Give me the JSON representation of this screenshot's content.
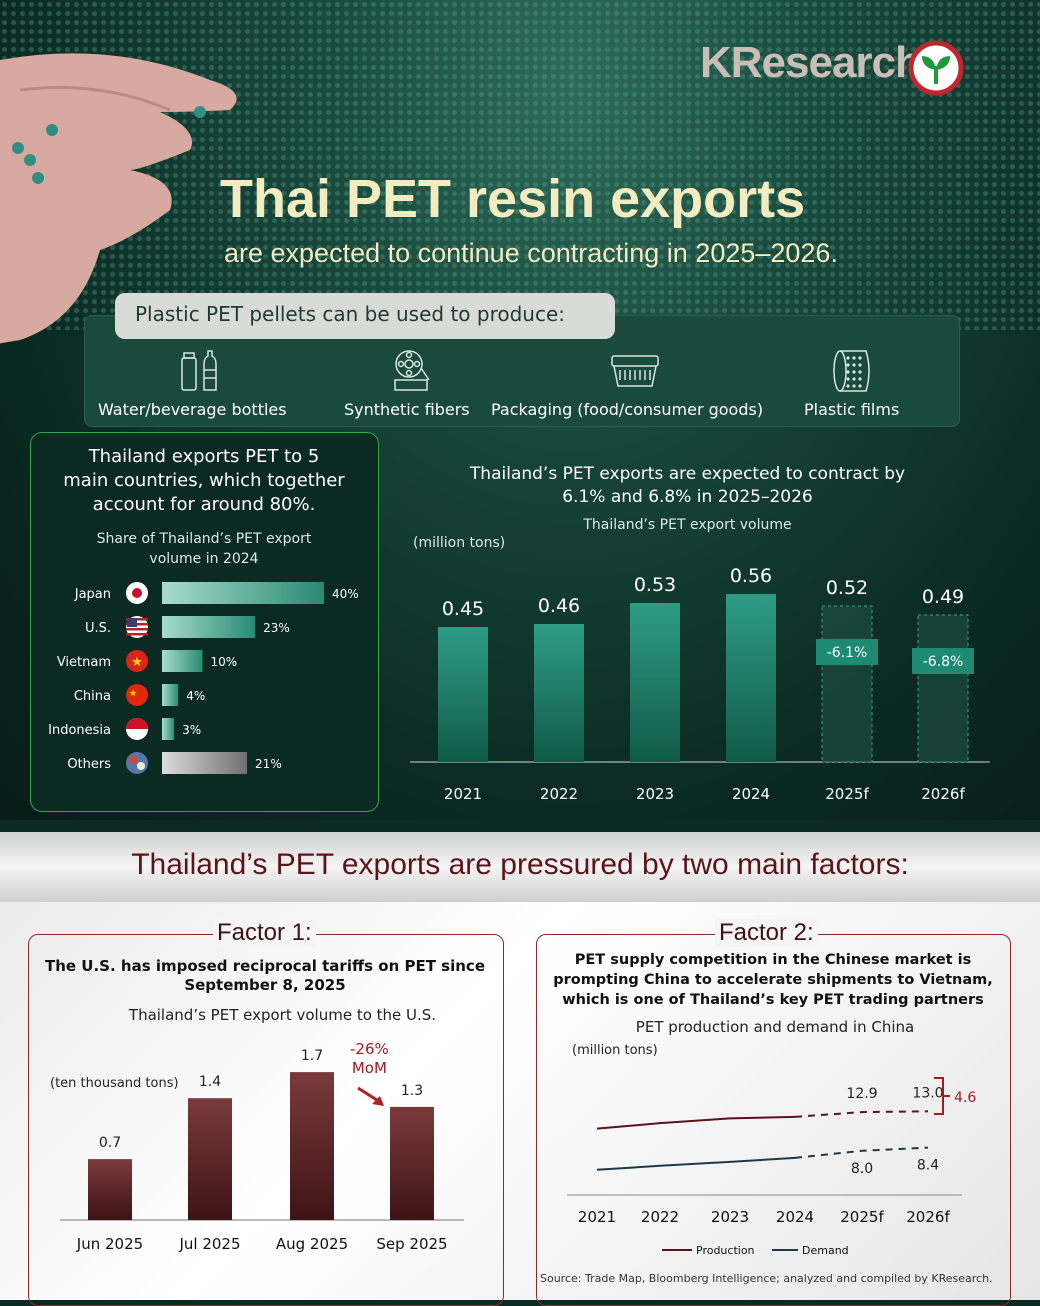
{
  "brand": {
    "name": "KResearch"
  },
  "header": {
    "title": "Thai PET resin exports",
    "subtitle": "are expected to continue contracting in 2025–2026."
  },
  "uses": {
    "heading": "Plastic PET pellets can be used to produce:",
    "items": [
      {
        "label": "Water/beverage bottles",
        "icon": "bottles-icon"
      },
      {
        "label": "Synthetic fibers",
        "icon": "fiber-spool-icon"
      },
      {
        "label": "Packaging (food/consumer goods)",
        "icon": "food-container-icon"
      },
      {
        "label": "Plastic films",
        "icon": "film-roll-icon"
      }
    ]
  },
  "export_share": {
    "heading": "Thailand exports PET to 5 main countries, which together account for around 80%.",
    "heading_lines": [
      "Thailand exports PET to 5",
      "main countries, which together",
      "account for around 80%."
    ],
    "subheading_lines": [
      "Share of Thailand’s PET export",
      "volume in 2024"
    ]
  },
  "export_volume": {
    "heading_lines": [
      "Thailand’s PET exports are expected to contract by",
      "6.1% and 6.8% in 2025–2026"
    ],
    "subheading": "Thailand’s PET export volume",
    "unit": "(million tons)"
  },
  "factors": {
    "title": "Thailand’s PET exports are pressured by two main factors:",
    "factor1": {
      "tag": "Factor 1:",
      "desc_lines": [
        "The U.S. has imposed reciprocal tariffs on PET since",
        "September 8, 2025"
      ],
      "chart_title": "Thailand’s PET export volume to the U.S.",
      "unit": "(ten thousand tons)",
      "annotation_lines": [
        "-26%",
        "MoM"
      ]
    },
    "factor2": {
      "tag": "Factor 2:",
      "desc_lines": [
        "PET supply competition in the Chinese market is",
        "prompting China to accelerate shipments to Vietnam,",
        "which is one of Thailand’s key PET trading partners"
      ],
      "chart_title": "PET production and demand in China",
      "unit": "(million tons)",
      "gap_label": "4.6"
    }
  },
  "source": "Source: Trade Map, Bloomberg Intelligence; analyzed and compiled by KResearch.",
  "colors": {
    "bg_dark": "#0b2a22",
    "teal": "#1e8a72",
    "maroon": "#5b1418",
    "cream": "#f3ecc0"
  },
  "chart_data": [
    {
      "type": "bar",
      "title": "Share of Thailand’s PET export volume in 2024",
      "categories": [
        "Japan",
        "U.S.",
        "Vietnam",
        "China",
        "Indonesia",
        "Others"
      ],
      "values": [
        40,
        23,
        10,
        4,
        3,
        21
      ],
      "labels": [
        "40%",
        "23%",
        "10%",
        "4%",
        "3%",
        "21%"
      ],
      "orientation": "horizontal",
      "unit": "%"
    },
    {
      "type": "bar",
      "title": "Thailand’s PET export volume",
      "ylabel": "(million tons)",
      "categories": [
        "2021",
        "2022",
        "2023",
        "2024",
        "2025f",
        "2026f"
      ],
      "values": [
        0.45,
        0.46,
        0.53,
        0.56,
        0.52,
        0.49
      ],
      "labels": [
        "0.45",
        "0.46",
        "0.53",
        "0.56",
        "0.52",
        "0.49"
      ],
      "forecast": [
        false,
        false,
        false,
        false,
        true,
        true
      ],
      "changes": [
        "",
        "",
        "",
        "",
        "-6.1%",
        "-6.8%"
      ],
      "ylim": [
        0,
        0.6
      ]
    },
    {
      "type": "bar",
      "title": "Thailand’s PET export volume to the U.S.",
      "ylabel": "(ten thousand tons)",
      "categories": [
        "Jun 2025",
        "Jul 2025",
        "Aug 2025",
        "Sep 2025"
      ],
      "values": [
        0.7,
        1.4,
        1.7,
        1.3
      ],
      "labels": [
        "0.7",
        "1.4",
        "1.7",
        "1.3"
      ],
      "ylim": [
        0,
        2.0
      ]
    },
    {
      "type": "line",
      "title": "PET production and demand in China",
      "ylabel": "(million tons)",
      "x": [
        "2021",
        "2022",
        "2023",
        "2024",
        "2025f",
        "2026f"
      ],
      "series": [
        {
          "name": "Production",
          "values": [
            10.8,
            11.5,
            12.1,
            12.3,
            12.9,
            13.0
          ],
          "color": "#5b1418",
          "labels": [
            "",
            "",
            "",
            "",
            "12.9",
            "13.0"
          ]
        },
        {
          "name": "Demand",
          "values": [
            5.6,
            6.1,
            6.6,
            7.1,
            8.0,
            8.4
          ],
          "color": "#1d3a4a",
          "labels": [
            "",
            "",
            "",
            "",
            "8.0",
            "8.4"
          ]
        }
      ],
      "forecast_from": "2025f",
      "ylim": [
        0,
        16
      ]
    }
  ]
}
